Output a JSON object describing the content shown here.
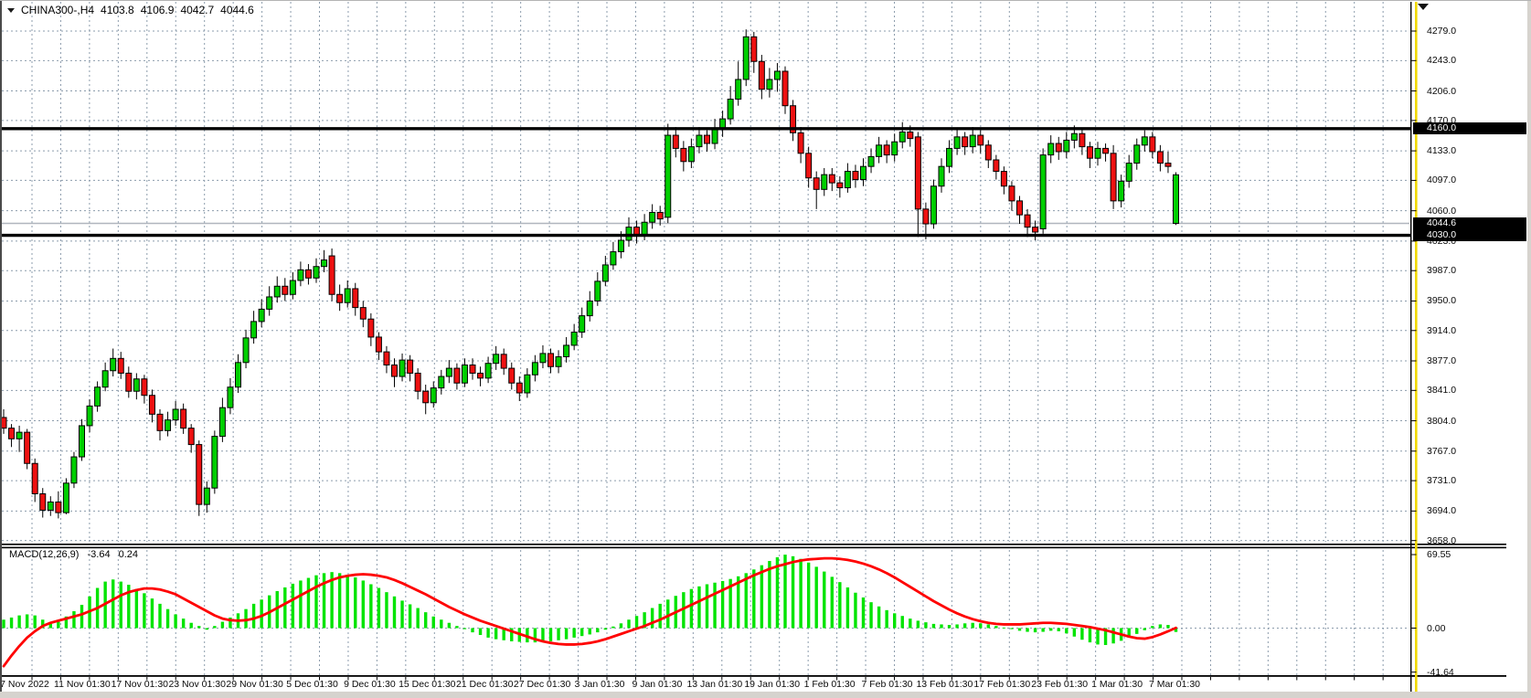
{
  "header": {
    "symbol_period": "CHINA300-,H4",
    "open": "4103.8",
    "high": "4106.9",
    "low": "4042.7",
    "close": "4044.6"
  },
  "macd": {
    "name": "MACD(12,26,9)",
    "value": "-3.64",
    "signal_value": "0.24",
    "scale": [
      {
        "label": "69.55",
        "value": 69.55
      },
      {
        "label": "0.00",
        "value": 0.0
      },
      {
        "label": "-41.64",
        "value": -41.64
      }
    ]
  },
  "levels": [
    {
      "label": "4160.0",
      "price": 4160.0
    },
    {
      "label": "4030.0",
      "price": 4030.0
    }
  ],
  "bid": {
    "label": "4044.6",
    "price": 4044.6
  },
  "colors": {
    "candle_up": "#00cf00",
    "candle_down": "#ee1111",
    "candle_border": "#000000",
    "grid": "#8c9cac",
    "macd_hist": "#00e400",
    "macd_signal": "#ff0000",
    "level_line": "#000000",
    "bid_line": "#b0b6be",
    "badge_bg": "#000000",
    "badge_fg": "#ffffff",
    "vline_yellow": "#f0d800"
  },
  "chart_data": {
    "type": "candlestick",
    "symbol": "CHINA300-",
    "timeframe": "H4",
    "title": "CHINA300-,H4 4103.8 4106.9 4042.7 4044.6",
    "grid": true,
    "price_axis": {
      "min": 3658.0,
      "max": 4279.0,
      "tick_values": [
        4279.0,
        4243.0,
        4206.0,
        4170.0,
        4133.0,
        4097.0,
        4060.0,
        4023.0,
        3987.0,
        3950.0,
        3914.0,
        3877.0,
        3841.0,
        3804.0,
        3767.0,
        3731.0,
        3694.0,
        3658.0
      ],
      "tick_labels": [
        "4279.0",
        "4243.0",
        "4206.0",
        "4170.0",
        "4133.0",
        "4097.0",
        "4060.0",
        "4023.0",
        "3987.0",
        "3950.0",
        "3914.0",
        "3877.0",
        "3841.0",
        "3804.0",
        "3767.0",
        "3731.0",
        "3694.0",
        "3658.0"
      ]
    },
    "time_labels": [
      "7 Nov 2022",
      "11 Nov 01:30",
      "17 Nov 01:30",
      "23 Nov 01:30",
      "29 Nov 01:30",
      "5 Dec 01:30",
      "9 Dec 01:30",
      "15 Dec 01:30",
      "21 Dec 01:30",
      "27 Dec 01:30",
      "3 Jan 01:30",
      "9 Jan 01:30",
      "13 Jan 01:30",
      "19 Jan 01:30",
      "1 Feb 01:30",
      "7 Feb 01:30",
      "13 Feb 01:30",
      "17 Feb 01:30",
      "23 Feb 01:30",
      "1 Mar 01:30",
      "7 Mar 01:30"
    ],
    "horizontal_levels": [
      4160.0,
      4030.0
    ],
    "bid_price": 4044.6,
    "last_candle_rendered_color": "up",
    "candles": [
      [
        3808,
        3818,
        3788,
        3795
      ],
      [
        3795,
        3800,
        3772,
        3782
      ],
      [
        3782,
        3798,
        3766,
        3790
      ],
      [
        3790,
        3794,
        3745,
        3752
      ],
      [
        3752,
        3758,
        3705,
        3715
      ],
      [
        3715,
        3722,
        3686,
        3695
      ],
      [
        3695,
        3712,
        3688,
        3705
      ],
      [
        3705,
        3718,
        3685,
        3692
      ],
      [
        3692,
        3734,
        3690,
        3728
      ],
      [
        3728,
        3766,
        3722,
        3760
      ],
      [
        3760,
        3806,
        3755,
        3798
      ],
      [
        3798,
        3830,
        3790,
        3822
      ],
      [
        3822,
        3852,
        3815,
        3845
      ],
      [
        3845,
        3875,
        3840,
        3865
      ],
      [
        3865,
        3892,
        3858,
        3880
      ],
      [
        3880,
        3888,
        3855,
        3862
      ],
      [
        3862,
        3870,
        3832,
        3840
      ],
      [
        3840,
        3862,
        3830,
        3855
      ],
      [
        3855,
        3860,
        3825,
        3835
      ],
      [
        3835,
        3842,
        3802,
        3812
      ],
      [
        3812,
        3818,
        3780,
        3792
      ],
      [
        3792,
        3815,
        3785,
        3805
      ],
      [
        3805,
        3828,
        3798,
        3818
      ],
      [
        3818,
        3825,
        3788,
        3795
      ],
      [
        3795,
        3800,
        3765,
        3775
      ],
      [
        3775,
        3780,
        3688,
        3702
      ],
      [
        3702,
        3730,
        3692,
        3722
      ],
      [
        3722,
        3792,
        3715,
        3785
      ],
      [
        3785,
        3832,
        3778,
        3820
      ],
      [
        3820,
        3856,
        3812,
        3845
      ],
      [
        3845,
        3885,
        3838,
        3875
      ],
      [
        3875,
        3915,
        3868,
        3905
      ],
      [
        3905,
        3938,
        3898,
        3925
      ],
      [
        3925,
        3952,
        3918,
        3940
      ],
      [
        3940,
        3968,
        3932,
        3955
      ],
      [
        3955,
        3980,
        3948,
        3968
      ],
      [
        3968,
        3978,
        3950,
        3958
      ],
      [
        3958,
        3985,
        3952,
        3975
      ],
      [
        3975,
        3998,
        3968,
        3988
      ],
      [
        3988,
        3995,
        3970,
        3978
      ],
      [
        3978,
        4002,
        3972,
        3992
      ],
      [
        3992,
        4012,
        3985,
        4000
      ],
      [
        4005,
        4014,
        3950,
        3958
      ],
      [
        3958,
        3970,
        3938,
        3948
      ],
      [
        3948,
        3975,
        3942,
        3965
      ],
      [
        3965,
        3972,
        3932,
        3942
      ],
      [
        3942,
        3950,
        3918,
        3928
      ],
      [
        3928,
        3935,
        3895,
        3906
      ],
      [
        3906,
        3912,
        3878,
        3888
      ],
      [
        3888,
        3895,
        3862,
        3872
      ],
      [
        3872,
        3880,
        3845,
        3858
      ],
      [
        3858,
        3886,
        3852,
        3878
      ],
      [
        3878,
        3884,
        3852,
        3862
      ],
      [
        3862,
        3868,
        3830,
        3840
      ],
      [
        3840,
        3848,
        3812,
        3826
      ],
      [
        3826,
        3852,
        3820,
        3844
      ],
      [
        3844,
        3866,
        3836,
        3858
      ],
      [
        3858,
        3878,
        3850,
        3868
      ],
      [
        3868,
        3874,
        3842,
        3850
      ],
      [
        3850,
        3880,
        3845,
        3872
      ],
      [
        3872,
        3880,
        3854,
        3862
      ],
      [
        3862,
        3870,
        3846,
        3856
      ],
      [
        3856,
        3882,
        3850,
        3874
      ],
      [
        3874,
        3895,
        3866,
        3885
      ],
      [
        3885,
        3892,
        3860,
        3868
      ],
      [
        3868,
        3875,
        3842,
        3850
      ],
      [
        3850,
        3858,
        3828,
        3838
      ],
      [
        3838,
        3868,
        3832,
        3860
      ],
      [
        3860,
        3884,
        3852,
        3875
      ],
      [
        3875,
        3896,
        3868,
        3886
      ],
      [
        3886,
        3892,
        3862,
        3870
      ],
      [
        3870,
        3890,
        3862,
        3882
      ],
      [
        3882,
        3906,
        3875,
        3896
      ],
      [
        3896,
        3922,
        3890,
        3912
      ],
      [
        3912,
        3942,
        3905,
        3932
      ],
      [
        3932,
        3962,
        3925,
        3950
      ],
      [
        3950,
        3985,
        3944,
        3974
      ],
      [
        3974,
        4005,
        3968,
        3994
      ],
      [
        3994,
        4022,
        3988,
        4010
      ],
      [
        4010,
        4035,
        4002,
        4024
      ],
      [
        4024,
        4052,
        4016,
        4040
      ],
      [
        4040,
        4048,
        4020,
        4030
      ],
      [
        4030,
        4056,
        4024,
        4046
      ],
      [
        4046,
        4068,
        4038,
        4058
      ],
      [
        4058,
        4066,
        4042,
        4050
      ],
      [
        4052,
        4166,
        4045,
        4152
      ],
      [
        4152,
        4162,
        4125,
        4136
      ],
      [
        4136,
        4145,
        4108,
        4120
      ],
      [
        4120,
        4148,
        4112,
        4138
      ],
      [
        4138,
        4162,
        4130,
        4152
      ],
      [
        4152,
        4158,
        4132,
        4142
      ],
      [
        4142,
        4172,
        4135,
        4160
      ],
      [
        4160,
        4182,
        4150,
        4172
      ],
      [
        4172,
        4212,
        4165,
        4196
      ],
      [
        4196,
        4242,
        4188,
        4220
      ],
      [
        4220,
        4281,
        4212,
        4272
      ],
      [
        4272,
        4278,
        4228,
        4242
      ],
      [
        4242,
        4250,
        4196,
        4208
      ],
      [
        4208,
        4234,
        4198,
        4220
      ],
      [
        4220,
        4240,
        4205,
        4230
      ],
      [
        4230,
        4236,
        4178,
        4188
      ],
      [
        4188,
        4195,
        4145,
        4155
      ],
      [
        4155,
        4162,
        4118,
        4130
      ],
      [
        4130,
        4138,
        4088,
        4100
      ],
      [
        4100,
        4108,
        4062,
        4086
      ],
      [
        4086,
        4112,
        4078,
        4104
      ],
      [
        4104,
        4112,
        4084,
        4094
      ],
      [
        4094,
        4102,
        4076,
        4088
      ],
      [
        4088,
        4118,
        4082,
        4108
      ],
      [
        4108,
        4116,
        4088,
        4098
      ],
      [
        4098,
        4124,
        4090,
        4114
      ],
      [
        4114,
        4136,
        4106,
        4126
      ],
      [
        4126,
        4150,
        4118,
        4140
      ],
      [
        4140,
        4146,
        4118,
        4128
      ],
      [
        4128,
        4154,
        4120,
        4144
      ],
      [
        4144,
        4168,
        4136,
        4156
      ],
      [
        4156,
        4164,
        4138,
        4148
      ],
      [
        4150,
        4156,
        4028,
        4062
      ],
      [
        4062,
        4070,
        4025,
        4044
      ],
      [
        4044,
        4098,
        4038,
        4090
      ],
      [
        4090,
        4124,
        4082,
        4114
      ],
      [
        4114,
        4146,
        4106,
        4136
      ],
      [
        4136,
        4160,
        4128,
        4150
      ],
      [
        4150,
        4156,
        4128,
        4138
      ],
      [
        4138,
        4162,
        4130,
        4152
      ],
      [
        4152,
        4158,
        4130,
        4140
      ],
      [
        4140,
        4146,
        4112,
        4122
      ],
      [
        4122,
        4128,
        4098,
        4108
      ],
      [
        4108,
        4114,
        4080,
        4090
      ],
      [
        4090,
        4096,
        4060,
        4072
      ],
      [
        4072,
        4078,
        4044,
        4055
      ],
      [
        4055,
        4062,
        4028,
        4040
      ],
      [
        4040,
        4048,
        4024,
        4034
      ],
      [
        4038,
        4136,
        4032,
        4128
      ],
      [
        4128,
        4152,
        4118,
        4142
      ],
      [
        4142,
        4150,
        4122,
        4132
      ],
      [
        4132,
        4156,
        4124,
        4146
      ],
      [
        4146,
        4164,
        4136,
        4154
      ],
      [
        4154,
        4160,
        4128,
        4138
      ],
      [
        4138,
        4144,
        4112,
        4124
      ],
      [
        4124,
        4144,
        4115,
        4136
      ],
      [
        4136,
        4142,
        4120,
        4130
      ],
      [
        4130,
        4140,
        4062,
        4072
      ],
      [
        4072,
        4104,
        4064,
        4096
      ],
      [
        4096,
        4128,
        4088,
        4118
      ],
      [
        4118,
        4148,
        4110,
        4140
      ],
      [
        4140,
        4158,
        4132,
        4150
      ],
      [
        4150,
        4156,
        4124,
        4132
      ],
      [
        4132,
        4140,
        4108,
        4118
      ],
      [
        4118,
        4132,
        4106,
        4114
      ],
      [
        4103.8,
        4106.9,
        4042.7,
        4044.6
      ]
    ],
    "macd": {
      "params": "12,26,9",
      "axis": {
        "max": 69.55,
        "zero": 0.0,
        "min": -41.64
      },
      "histogram": [
        8,
        10,
        12,
        13,
        12,
        8,
        4,
        6,
        11,
        16,
        22,
        30,
        38,
        44,
        46,
        44,
        41,
        37,
        33,
        28,
        23,
        18,
        13,
        9,
        5,
        2,
        -1.5,
        2,
        6,
        10,
        14,
        18,
        23,
        27,
        31,
        35,
        38.5,
        42,
        45,
        47.5,
        50,
        52,
        53,
        52,
        50.5,
        48,
        45,
        41.5,
        38,
        34,
        30,
        26,
        22.5,
        19,
        15,
        11,
        8,
        5,
        2,
        -1,
        -4,
        -6.5,
        -9,
        -10.5,
        -11.5,
        -12.5,
        -13,
        -13.5,
        -13.5,
        -13,
        -12.5,
        -11.5,
        -10.5,
        -9,
        -7.5,
        -6,
        -4,
        -1.5,
        1.5,
        4.5,
        8,
        11.5,
        15,
        19,
        23,
        27,
        30.5,
        34,
        37,
        39.5,
        41.5,
        43,
        44.5,
        46.5,
        49,
        52,
        55.5,
        59.5,
        63.5,
        67,
        69.5,
        68,
        65.5,
        62,
        58,
        53.5,
        48.5,
        43.5,
        38.5,
        33.5,
        29,
        24.5,
        20.5,
        17,
        14,
        11.5,
        9,
        7,
        5.5,
        4,
        3.5,
        3,
        3.5,
        4.5,
        5,
        4.5,
        3.5,
        2,
        0.5,
        -1,
        -2.5,
        -3.5,
        -4,
        -3.5,
        -2.5,
        -3,
        -5,
        -8,
        -11,
        -13.5,
        -15.5,
        -16,
        -14.5,
        -12,
        -9,
        -5.5,
        -2,
        2,
        3.5,
        3,
        -3.64
      ],
      "signal": [
        -36,
        -26,
        -17,
        -9,
        -3,
        2,
        5,
        7,
        9,
        11,
        13,
        16,
        19,
        23,
        27,
        31,
        34,
        36,
        37.5,
        37.5,
        36.5,
        34.5,
        32,
        28,
        24,
        20,
        16,
        12,
        9,
        7.5,
        7,
        7.5,
        9,
        11.5,
        15,
        19,
        23,
        27,
        31,
        35,
        39,
        42.5,
        45.5,
        48,
        49.5,
        50.5,
        51,
        50.5,
        49.5,
        48,
        45.5,
        42.5,
        39,
        35.5,
        32,
        28,
        24,
        20,
        16.5,
        13,
        10,
        7,
        4.5,
        2,
        -0.5,
        -3,
        -5.5,
        -8,
        -10.5,
        -12.5,
        -14,
        -15,
        -15.5,
        -15.5,
        -15,
        -14,
        -12.5,
        -10.5,
        -8,
        -5.5,
        -3,
        -0.5,
        2,
        5,
        8,
        11.5,
        15,
        18.5,
        22,
        25.5,
        29,
        32.5,
        36,
        39.5,
        43,
        46.5,
        50,
        53,
        56,
        58.5,
        60.5,
        62.5,
        64,
        65,
        65.5,
        66,
        66,
        65.5,
        64.5,
        63,
        61,
        58.5,
        55.5,
        52,
        48,
        43.5,
        39,
        34.5,
        30,
        25.5,
        21.5,
        17.5,
        14,
        11,
        8.5,
        6.5,
        5,
        4,
        3.5,
        3.5,
        3.5,
        4,
        4.5,
        5,
        5,
        4.5,
        4,
        3,
        2,
        1,
        -0.5,
        -2,
        -4,
        -6,
        -8,
        -9.5,
        -10,
        -8.5,
        -6,
        -3,
        0.24
      ]
    }
  }
}
